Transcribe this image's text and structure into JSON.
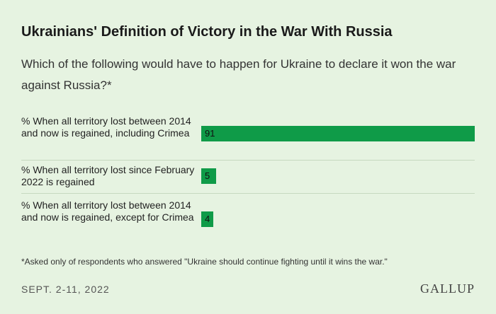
{
  "chart_data": {
    "type": "bar",
    "orientation": "horizontal",
    "title": "Ukrainians' Definition of Victory in the War With Russia",
    "subtitle": "Which of the following would have to happen for Ukraine to declare it won the war against Russia?*",
    "categories": [
      "% When all territory lost between 2014 and now is regained, including Crimea",
      "% When all territory lost since February 2022 is regained",
      "% When all territory lost between 2014 and now is regained, except for Crimea"
    ],
    "values": [
      91,
      5,
      4
    ],
    "value_labels": [
      "91",
      "5",
      "4"
    ],
    "xlim": [
      0,
      91
    ],
    "bar_color": "#0f9b48",
    "grid": false,
    "legend": "none"
  },
  "footnote": "*Asked only of respondents who answered \"Ukraine should continue fighting until it wins the war.\"",
  "date": "SEPT. 2-11, 2022",
  "brand": "GALLUP",
  "colors": {
    "background": "#e6f3e1",
    "bar": "#0f9b48",
    "divider": "#c6d9c0"
  }
}
